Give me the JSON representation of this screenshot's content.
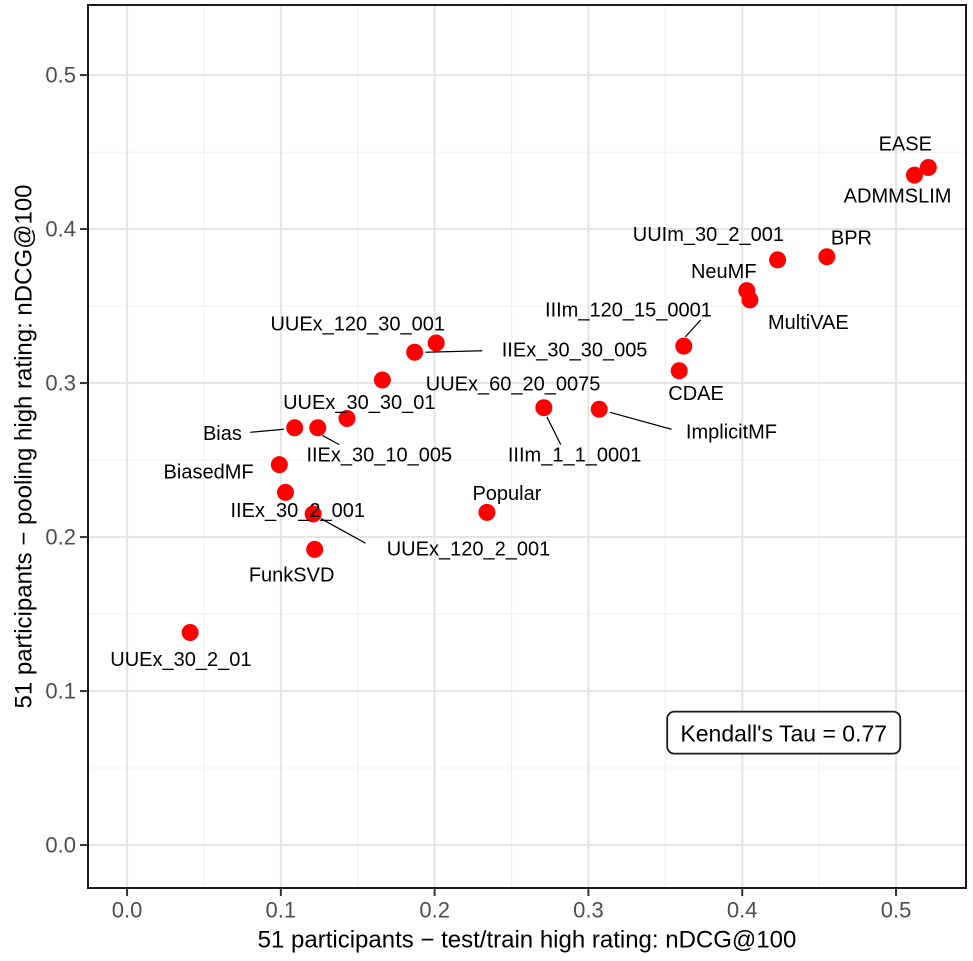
{
  "figure": {
    "kind": "scatter-plot-screenshot"
  },
  "chart_data": {
    "type": "scatter",
    "title": "",
    "xlabel": "51 participants − test/train high rating: nDCG@100",
    "ylabel": "51 participants − pooling high rating: nDCG@100",
    "xlim": [
      -0.0254,
      0.5455
    ],
    "ylim": [
      -0.0279,
      0.5455
    ],
    "x_ticks": [
      0,
      0.1,
      0.2,
      0.3,
      0.4,
      0.5
    ],
    "x_tick_labels": [
      "0.0",
      "0.1",
      "0.2",
      "0.3",
      "0.4",
      "0.5"
    ],
    "y_ticks": [
      0,
      0.1,
      0.2,
      0.3,
      0.4,
      0.5
    ],
    "y_tick_labels": [
      "0.0",
      "0.1",
      "0.2",
      "0.3",
      "0.4",
      "0.5"
    ],
    "minor_ticks": [
      0.05,
      0.15,
      0.25,
      0.35,
      0.45
    ],
    "grid": "major+minor",
    "legend": "none",
    "point_color": "#ff0000",
    "grid_major_color": "#e4e4e4",
    "grid_minor_color": "#f0f0f0",
    "border_color": "#1a1a1a",
    "tick_label_color": "#4d4d4d",
    "annotation": {
      "text": "Kendall's Tau = 0.77",
      "x": 0.427,
      "y": 0.073
    },
    "points": [
      {
        "label": "UUEx_30_2_01",
        "x": 0.041,
        "y": 0.138,
        "label_x": 0.035,
        "label_y": 0.12
      },
      {
        "label": "BiasedMF",
        "x": 0.099,
        "y": 0.247,
        "label_x": 0.053,
        "label_y": 0.242
      },
      {
        "label": "IIEx_30_2_001",
        "x": 0.103,
        "y": 0.229,
        "label_x": 0.111,
        "label_y": 0.217
      },
      {
        "label": "Bias",
        "x": 0.109,
        "y": 0.271,
        "label_x": 0.062,
        "label_y": 0.267,
        "leader": {
          "x1": 0.08,
          "y1": 0.268,
          "x2": 0.102,
          "y2": 0.27
        }
      },
      {
        "label": "IIEx_30_10_005",
        "x": 0.124,
        "y": 0.271,
        "label_x": 0.164,
        "label_y": 0.253,
        "leader": {
          "x1": 0.138,
          "y1": 0.26,
          "x2": 0.127,
          "y2": 0.266
        }
      },
      {
        "label": "UUEx_120_2_001",
        "x": 0.121,
        "y": 0.215,
        "label_x": 0.222,
        "label_y": 0.192,
        "leader": {
          "x1": 0.155,
          "y1": 0.196,
          "x2": 0.126,
          "y2": 0.212
        }
      },
      {
        "label": "FunkSVD",
        "x": 0.122,
        "y": 0.192,
        "label_x": 0.107,
        "label_y": 0.175
      },
      {
        "label": "UUEx_30_30_01",
        "x": 0.143,
        "y": 0.277,
        "label_x": 0.151,
        "label_y": 0.287
      },
      {
        "label": "UUEx_60_20_0075",
        "x": 0.166,
        "y": 0.302,
        "label_x": 0.251,
        "label_y": 0.299
      },
      {
        "label": "IIEx_30_30_005",
        "x": 0.187,
        "y": 0.32,
        "label_x": 0.291,
        "label_y": 0.321,
        "leader": {
          "x1": 0.231,
          "y1": 0.321,
          "x2": 0.194,
          "y2": 0.32
        }
      },
      {
        "label": "UUEx_120_30_001",
        "x": 0.201,
        "y": 0.326,
        "label_x": 0.15,
        "label_y": 0.338
      },
      {
        "label": "Popular",
        "x": 0.234,
        "y": 0.216,
        "label_x": 0.247,
        "label_y": 0.228
      },
      {
        "label": "IIIm_1_1_0001",
        "x": 0.271,
        "y": 0.284,
        "label_x": 0.291,
        "label_y": 0.253,
        "leader": {
          "x1": 0.282,
          "y1": 0.26,
          "x2": 0.273,
          "y2": 0.278
        }
      },
      {
        "label": "ImplicitMF",
        "x": 0.307,
        "y": 0.283,
        "label_x": 0.393,
        "label_y": 0.268,
        "leader": {
          "x1": 0.354,
          "y1": 0.27,
          "x2": 0.314,
          "y2": 0.281
        }
      },
      {
        "label": "CDAE",
        "x": 0.359,
        "y": 0.308,
        "label_x": 0.37,
        "label_y": 0.293
      },
      {
        "label": "IIIm_120_15_0001",
        "x": 0.362,
        "y": 0.324,
        "label_x": 0.326,
        "label_y": 0.347,
        "leader": {
          "x1": 0.373,
          "y1": 0.341,
          "x2": 0.363,
          "y2": 0.33
        }
      },
      {
        "label": "NeuMF",
        "x": 0.403,
        "y": 0.36,
        "label_x": 0.388,
        "label_y": 0.372
      },
      {
        "label": "MultiVAE",
        "x": 0.405,
        "y": 0.354,
        "label_x": 0.443,
        "label_y": 0.339
      },
      {
        "label": "UUIm_30_2_001",
        "x": 0.423,
        "y": 0.38,
        "label_x": 0.378,
        "label_y": 0.396
      },
      {
        "label": "BPR",
        "x": 0.455,
        "y": 0.382,
        "label_x": 0.471,
        "label_y": 0.394
      },
      {
        "label": "ADMMSLIM",
        "x": 0.512,
        "y": 0.435,
        "label_x": 0.501,
        "label_y": 0.421
      },
      {
        "label": "EASE",
        "x": 0.521,
        "y": 0.44,
        "label_x": 0.506,
        "label_y": 0.455
      }
    ]
  }
}
